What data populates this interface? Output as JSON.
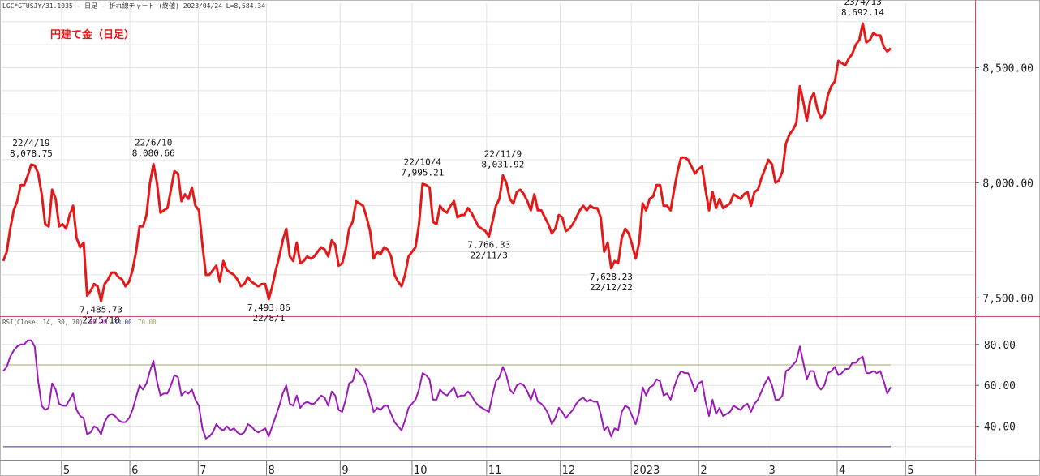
{
  "header": {
    "info": "LGC*GTUSJY/31.1035 - 日足 - 折れ線チャート (終値) 2023/04/24 L=8,584.34",
    "chart_title": "円建て金（日足）"
  },
  "colors": {
    "price_line": "#e41a1a",
    "rsi_line": "#9c1bb8",
    "rsi_upper": "#a8a060",
    "rsi_lower": "#3a3a8c",
    "title": "#e41a1a",
    "grid": "#e3e3e3",
    "border": "#c8505a"
  },
  "chart_data": [
    {
      "type": "line",
      "title": "円建て金（日足）",
      "ylim": [
        7420,
        8780
      ],
      "yticks": [
        {
          "value": 7500,
          "label": "7,500.00"
        },
        {
          "value": 8000,
          "label": "8,000.00"
        },
        {
          "value": 8500,
          "label": "8,500.00"
        }
      ],
      "series": [
        {
          "values": [
            7660,
            7700,
            7800,
            7880,
            7920,
            7990,
            7990,
            8030,
            8078.75,
            8075,
            8040,
            7950,
            7820,
            7810,
            7970,
            7930,
            7810,
            7820,
            7800,
            7860,
            7900,
            7760,
            7720,
            7740,
            7510,
            7530,
            7560,
            7550,
            7485.73,
            7560,
            7580,
            7610,
            7610,
            7590,
            7580,
            7550,
            7570,
            7620,
            7700,
            7810,
            7810,
            7860,
            8000,
            8080.66,
            8000,
            7870,
            7880,
            7890,
            7970,
            8050,
            8040,
            7920,
            7950,
            7930,
            7980,
            7900,
            7880,
            7730,
            7600,
            7600,
            7620,
            7640,
            7570,
            7660,
            7620,
            7610,
            7600,
            7580,
            7550,
            7560,
            7590,
            7570,
            7560,
            7550,
            7560,
            7560,
            7493.86,
            7550,
            7620,
            7680,
            7750,
            7800,
            7680,
            7660,
            7740,
            7650,
            7660,
            7680,
            7670,
            7680,
            7700,
            7720,
            7710,
            7680,
            7750,
            7730,
            7640,
            7650,
            7710,
            7800,
            7830,
            7920,
            7910,
            7900,
            7850,
            7790,
            7670,
            7700,
            7690,
            7720,
            7710,
            7680,
            7600,
            7570,
            7550,
            7600,
            7680,
            7700,
            7720,
            7820,
            7995.21,
            7990,
            7980,
            7830,
            7820,
            7900,
            7880,
            7870,
            7900,
            7920,
            7850,
            7860,
            7860,
            7890,
            7870,
            7840,
            7810,
            7800,
            7790,
            7766.33,
            7830,
            7900,
            7930,
            8031.92,
            8000,
            7930,
            7910,
            7960,
            7970,
            7950,
            7920,
            7880,
            7950,
            7880,
            7880,
            7850,
            7820,
            7780,
            7800,
            7860,
            7850,
            7790,
            7800,
            7820,
            7850,
            7880,
            7900,
            7880,
            7900,
            7890,
            7890,
            7850,
            7700,
            7740,
            7628.23,
            7660,
            7650,
            7760,
            7800,
            7780,
            7730,
            7670,
            7740,
            7910,
            7880,
            7930,
            7940,
            7990,
            7990,
            7900,
            7900,
            7880,
            7970,
            8050,
            8110,
            8110,
            8100,
            8070,
            8040,
            8060,
            8070,
            7970,
            7880,
            7960,
            7890,
            7930,
            7890,
            7900,
            7910,
            7950,
            7940,
            7930,
            7950,
            7960,
            7900,
            7960,
            7970,
            8020,
            8060,
            8100,
            8080,
            8000,
            8010,
            8050,
            8170,
            8210,
            8230,
            8260,
            8420,
            8350,
            8270,
            8360,
            8390,
            8320,
            8280,
            8300,
            8380,
            8420,
            8440,
            8530,
            8520,
            8510,
            8540,
            8560,
            8600,
            8620,
            8692.14,
            8610,
            8620,
            8650,
            8640,
            8640,
            8590,
            8570,
            8584.34
          ]
        }
      ],
      "annotations": [
        {
          "date": "22/4/19",
          "value": 8078.75,
          "value_label": "8,078.75",
          "position": "above"
        },
        {
          "date": "22/5/18",
          "value": 7485.73,
          "value_label": "7,485.73",
          "position": "below"
        },
        {
          "date": "22/6/10",
          "value": 8080.66,
          "value_label": "8,080.66",
          "position": "above"
        },
        {
          "date": "22/8/1",
          "value": 7493.86,
          "value_label": "7,493.86",
          "position": "below"
        },
        {
          "date": "22/10/4",
          "value": 7995.21,
          "value_label": "7,995.21",
          "position": "above"
        },
        {
          "date": "22/11/3",
          "value": 7766.33,
          "value_label": "7,766.33",
          "position": "below"
        },
        {
          "date": "22/11/9",
          "value": 8031.92,
          "value_label": "8,031.92",
          "position": "above"
        },
        {
          "date": "22/12/22",
          "value": 7628.23,
          "value_label": "7,628.23",
          "position": "below"
        },
        {
          "date": "23/4/13",
          "value": 8692.14,
          "value_label": "8,692.14",
          "position": "above"
        }
      ],
      "grid": true
    },
    {
      "type": "line",
      "title": "RSI(Close, 14, 30, 70) 59.09 30.00 70.00",
      "ylim": [
        24,
        93
      ],
      "yticks": [
        {
          "value": 40,
          "label": "40.00"
        },
        {
          "value": 60,
          "label": "60.00"
        },
        {
          "value": 80,
          "label": "80.00"
        }
      ],
      "thresholds": [
        {
          "value": 70,
          "label": "70.00"
        },
        {
          "value": 30,
          "label": "30.00"
        }
      ],
      "rsi_label_parts": {
        "name": "RSI(Close, 14, 30, 70)",
        "current": "59.09",
        "lower": "30.00",
        "upper": "70.00"
      },
      "series": [
        {
          "values": [
            67,
            69,
            74,
            77,
            79,
            80,
            80,
            82,
            82,
            79,
            62,
            50,
            48,
            49,
            61,
            58,
            51,
            50,
            50,
            53,
            56,
            48,
            45,
            44,
            36,
            37,
            40,
            39,
            36,
            42,
            45,
            46,
            45,
            43,
            42,
            42,
            44,
            48,
            54,
            60,
            58,
            61,
            67,
            72,
            62,
            55,
            56,
            56,
            60,
            65,
            64,
            55,
            57,
            56,
            58,
            53,
            50,
            39,
            34,
            35,
            37,
            41,
            39,
            38,
            40,
            38,
            39,
            37,
            36,
            37,
            41,
            40,
            38,
            37,
            38,
            39,
            35,
            40,
            45,
            50,
            56,
            60,
            51,
            50,
            55,
            49,
            51,
            52,
            51,
            51,
            53,
            55,
            54,
            50,
            57,
            55,
            48,
            47,
            53,
            61,
            62,
            68,
            66,
            64,
            60,
            54,
            47,
            49,
            48,
            50,
            50,
            46,
            42,
            40,
            38,
            43,
            49,
            51,
            53,
            58,
            66,
            65,
            63,
            53,
            53,
            58,
            56,
            55,
            57,
            59,
            54,
            55,
            55,
            57,
            55,
            52,
            50,
            49,
            48,
            47,
            55,
            62,
            64,
            69,
            65,
            58,
            56,
            60,
            61,
            60,
            57,
            53,
            58,
            52,
            51,
            49,
            46,
            41,
            44,
            49,
            47,
            44,
            46,
            48,
            51,
            53,
            54,
            52,
            53,
            52,
            52,
            46,
            38,
            40,
            35,
            39,
            38,
            47,
            50,
            49,
            45,
            41,
            47,
            59,
            55,
            59,
            60,
            63,
            62,
            55,
            56,
            53,
            59,
            64,
            67,
            66,
            66,
            62,
            57,
            61,
            62,
            52,
            45,
            53,
            46,
            49,
            45,
            46,
            47,
            50,
            49,
            48,
            50,
            51,
            47,
            51,
            53,
            57,
            61,
            64,
            60,
            53,
            53,
            55,
            67,
            68,
            70,
            72,
            79,
            71,
            63,
            67,
            67,
            60,
            58,
            60,
            66,
            67,
            69,
            65,
            66,
            68,
            68,
            71,
            71,
            73,
            74,
            66,
            66,
            67,
            66,
            67,
            62,
            56,
            59.09
          ]
        }
      ],
      "grid": true
    }
  ],
  "x_axis": {
    "labels": [
      "5",
      "6",
      "7",
      "8",
      "9",
      "10",
      "11",
      "12",
      "2023",
      "2",
      "3",
      "4",
      "5"
    ]
  }
}
